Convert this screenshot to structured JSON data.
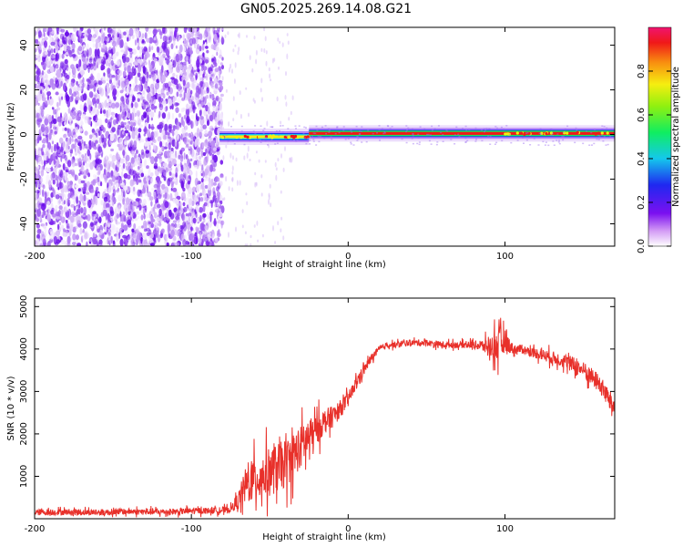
{
  "figure": {
    "title": "GN05.2025.269.14.08.G21"
  },
  "chart_data": [
    {
      "type": "heatmap",
      "title": "GN05.2025.269.14.08.G21",
      "xlabel": "Height of straight line (km)",
      "ylabel": "Frequency (Hz)",
      "xlim": [
        -200,
        170
      ],
      "ylim": [
        -50,
        48
      ],
      "xticks": [
        -200,
        -100,
        0,
        100
      ],
      "yticks": [
        -40,
        -20,
        0,
        20,
        40
      ],
      "xtick_labels": [
        "-200",
        "-100",
        "0",
        "100"
      ],
      "ytick_labels": [
        "-40",
        "-20",
        "0",
        "20",
        "40"
      ],
      "noise_region_x": [
        -200,
        -80
      ],
      "signal_band_center_hz": 0,
      "signal_segments": [
        {
          "x": [
            -82,
            -25
          ],
          "freq_hz": -1,
          "level": 0.55
        },
        {
          "x": [
            -25,
            100
          ],
          "freq_hz": 0.5,
          "level": 0.95
        },
        {
          "x": [
            100,
            170
          ],
          "freq_hz": 0.5,
          "level": 0.75
        }
      ],
      "colorbar": {
        "label": "Normalized spectral amplitude",
        "range": [
          0,
          1
        ],
        "ticks": [
          0,
          0.2,
          0.4,
          0.6,
          0.8
        ],
        "tick_labels": [
          "0.0",
          "0.2",
          "0.4",
          "0.6",
          "0.8"
        ]
      }
    },
    {
      "type": "line",
      "xlabel": "Height of straight line (km)",
      "ylabel": "SNR (10 * v/v)",
      "xlim": [
        -200,
        170
      ],
      "ylim": [
        0,
        5200
      ],
      "xticks": [
        -200,
        -100,
        0,
        100
      ],
      "yticks": [
        1000,
        2000,
        3000,
        4000,
        5000
      ],
      "xtick_labels": [
        "-200",
        "-100",
        "0",
        "100"
      ],
      "ytick_labels": [
        "1000",
        "2000",
        "3000",
        "4000",
        "5000"
      ],
      "series": [
        {
          "name": "SNR",
          "color": "#e8302a",
          "x": [
            -200,
            -180,
            -160,
            -140,
            -120,
            -100,
            -90,
            -80,
            -75,
            -70,
            -65,
            -60,
            -55,
            -50,
            -45,
            -40,
            -35,
            -30,
            -25,
            -20,
            -15,
            -10,
            -5,
            0,
            5,
            10,
            15,
            20,
            25,
            30,
            40,
            50,
            60,
            70,
            80,
            90,
            95,
            100,
            105,
            110,
            120,
            130,
            140,
            150,
            160,
            170
          ],
          "values": [
            150,
            160,
            150,
            170,
            160,
            180,
            190,
            200,
            220,
            450,
            800,
            900,
            1000,
            1100,
            1200,
            1300,
            1500,
            1700,
            1900,
            2100,
            2300,
            2400,
            2600,
            2800,
            3200,
            3500,
            3800,
            4000,
            4100,
            4100,
            4150,
            4150,
            4100,
            4100,
            4100,
            4050,
            4100,
            4200,
            4000,
            4000,
            3900,
            3800,
            3700,
            3500,
            3200,
            2600
          ],
          "noise_amplitude": [
            150,
            150,
            150,
            150,
            150,
            150,
            150,
            150,
            150,
            400,
            900,
            1000,
            1100,
            1150,
            1150,
            1150,
            1100,
            1000,
            900,
            700,
            600,
            500,
            400,
            350,
            300,
            250,
            200,
            150,
            150,
            150,
            150,
            150,
            150,
            150,
            180,
            400,
            900,
            500,
            250,
            200,
            250,
            300,
            350,
            400,
            450,
            500
          ]
        }
      ]
    }
  ]
}
